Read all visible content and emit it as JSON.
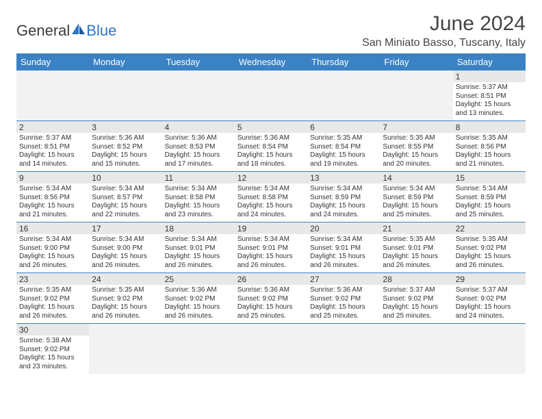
{
  "logo": {
    "text1": "General",
    "text2": "Blue"
  },
  "title": "June 2024",
  "subtitle": "San Miniato Basso, Tuscany, Italy",
  "colors": {
    "header_bg": "#3b82c4",
    "header_text": "#ffffff",
    "daynum_bg": "#e8e8e8",
    "empty_bg": "#f2f2f2",
    "border": "#3b82c4",
    "text": "#333333",
    "logo_accent": "#2e75c8"
  },
  "dayNames": [
    "Sunday",
    "Monday",
    "Tuesday",
    "Wednesday",
    "Thursday",
    "Friday",
    "Saturday"
  ],
  "weeks": [
    [
      null,
      null,
      null,
      null,
      null,
      null,
      {
        "d": "1",
        "sr": "5:37 AM",
        "ss": "8:51 PM",
        "dl": "15 hours and 13 minutes."
      }
    ],
    [
      {
        "d": "2",
        "sr": "5:37 AM",
        "ss": "8:51 PM",
        "dl": "15 hours and 14 minutes."
      },
      {
        "d": "3",
        "sr": "5:36 AM",
        "ss": "8:52 PM",
        "dl": "15 hours and 15 minutes."
      },
      {
        "d": "4",
        "sr": "5:36 AM",
        "ss": "8:53 PM",
        "dl": "15 hours and 17 minutes."
      },
      {
        "d": "5",
        "sr": "5:36 AM",
        "ss": "8:54 PM",
        "dl": "15 hours and 18 minutes."
      },
      {
        "d": "6",
        "sr": "5:35 AM",
        "ss": "8:54 PM",
        "dl": "15 hours and 19 minutes."
      },
      {
        "d": "7",
        "sr": "5:35 AM",
        "ss": "8:55 PM",
        "dl": "15 hours and 20 minutes."
      },
      {
        "d": "8",
        "sr": "5:35 AM",
        "ss": "8:56 PM",
        "dl": "15 hours and 21 minutes."
      }
    ],
    [
      {
        "d": "9",
        "sr": "5:34 AM",
        "ss": "8:56 PM",
        "dl": "15 hours and 21 minutes."
      },
      {
        "d": "10",
        "sr": "5:34 AM",
        "ss": "8:57 PM",
        "dl": "15 hours and 22 minutes."
      },
      {
        "d": "11",
        "sr": "5:34 AM",
        "ss": "8:58 PM",
        "dl": "15 hours and 23 minutes."
      },
      {
        "d": "12",
        "sr": "5:34 AM",
        "ss": "8:58 PM",
        "dl": "15 hours and 24 minutes."
      },
      {
        "d": "13",
        "sr": "5:34 AM",
        "ss": "8:59 PM",
        "dl": "15 hours and 24 minutes."
      },
      {
        "d": "14",
        "sr": "5:34 AM",
        "ss": "8:59 PM",
        "dl": "15 hours and 25 minutes."
      },
      {
        "d": "15",
        "sr": "5:34 AM",
        "ss": "8:59 PM",
        "dl": "15 hours and 25 minutes."
      }
    ],
    [
      {
        "d": "16",
        "sr": "5:34 AM",
        "ss": "9:00 PM",
        "dl": "15 hours and 26 minutes."
      },
      {
        "d": "17",
        "sr": "5:34 AM",
        "ss": "9:00 PM",
        "dl": "15 hours and 26 minutes."
      },
      {
        "d": "18",
        "sr": "5:34 AM",
        "ss": "9:01 PM",
        "dl": "15 hours and 26 minutes."
      },
      {
        "d": "19",
        "sr": "5:34 AM",
        "ss": "9:01 PM",
        "dl": "15 hours and 26 minutes."
      },
      {
        "d": "20",
        "sr": "5:34 AM",
        "ss": "9:01 PM",
        "dl": "15 hours and 26 minutes."
      },
      {
        "d": "21",
        "sr": "5:35 AM",
        "ss": "9:01 PM",
        "dl": "15 hours and 26 minutes."
      },
      {
        "d": "22",
        "sr": "5:35 AM",
        "ss": "9:02 PM",
        "dl": "15 hours and 26 minutes."
      }
    ],
    [
      {
        "d": "23",
        "sr": "5:35 AM",
        "ss": "9:02 PM",
        "dl": "15 hours and 26 minutes."
      },
      {
        "d": "24",
        "sr": "5:35 AM",
        "ss": "9:02 PM",
        "dl": "15 hours and 26 minutes."
      },
      {
        "d": "25",
        "sr": "5:36 AM",
        "ss": "9:02 PM",
        "dl": "15 hours and 26 minutes."
      },
      {
        "d": "26",
        "sr": "5:36 AM",
        "ss": "9:02 PM",
        "dl": "15 hours and 25 minutes."
      },
      {
        "d": "27",
        "sr": "5:36 AM",
        "ss": "9:02 PM",
        "dl": "15 hours and 25 minutes."
      },
      {
        "d": "28",
        "sr": "5:37 AM",
        "ss": "9:02 PM",
        "dl": "15 hours and 25 minutes."
      },
      {
        "d": "29",
        "sr": "5:37 AM",
        "ss": "9:02 PM",
        "dl": "15 hours and 24 minutes."
      }
    ],
    [
      {
        "d": "30",
        "sr": "5:38 AM",
        "ss": "9:02 PM",
        "dl": "15 hours and 23 minutes."
      },
      null,
      null,
      null,
      null,
      null,
      null
    ]
  ],
  "labels": {
    "sunrise": "Sunrise:",
    "sunset": "Sunset:",
    "daylight": "Daylight:"
  }
}
